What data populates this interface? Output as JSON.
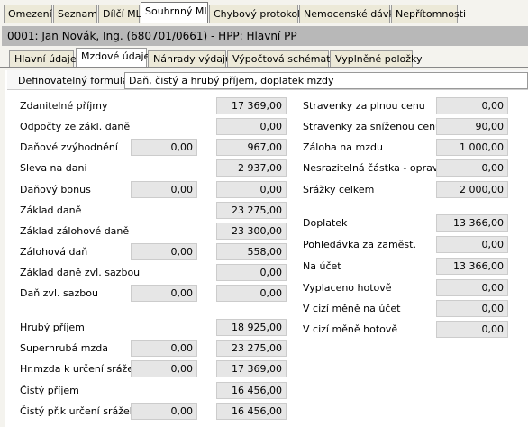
{
  "tabs": [
    "Omezení",
    "Seznam",
    "Dílčí ML",
    "Souhrnný ML",
    "Chybový protokol",
    "Nemocenské dávky",
    "Nepřítomnosti"
  ],
  "header": "0001: Jan Novák, Ing. (680701/0661) - HPP: Hlavní PP",
  "subtabs": [
    "Hlavní údaje",
    "Mzdové údaje",
    "Náhrady výdajů",
    "Výpočtová schémata",
    "Vyplněné položky"
  ],
  "form": {
    "label": "Definovatelný formulář:",
    "value": "Daň, čistý a hrubý příjem, doplatek mzdy"
  },
  "left_rows": [
    {
      "label": "Zdanitelné příjmy",
      "fields": [
        "17 369,00"
      ]
    },
    {
      "label": "Odpočty ze zákl. daně",
      "fields": [
        "0,00"
      ]
    },
    {
      "label": "Daňové zvýhodnění",
      "fields": [
        "0,00",
        "967,00"
      ]
    },
    {
      "label": "Sleva na dani",
      "fields": [
        "2 937,00"
      ]
    },
    {
      "label": "Daňový bonus",
      "fields": [
        "0,00",
        "0,00"
      ]
    },
    {
      "label": "Základ daně",
      "fields": [
        "23 275,00"
      ]
    },
    {
      "label": "Základ zálohové daně",
      "fields": [
        "23 300,00"
      ]
    },
    {
      "label": "Zálohová daň",
      "fields": [
        "0,00",
        "558,00"
      ]
    },
    {
      "label": "Základ daně zvl. sazbou",
      "fields": [
        "0,00"
      ]
    },
    {
      "label": "Daň zvl. sazbou",
      "fields": [
        "0,00",
        "0,00"
      ]
    },
    {
      "label": "Hrubý příjem",
      "fields": [
        "18 925,00"
      ]
    },
    {
      "label": "Superhrubá mzda",
      "fields": [
        "0,00",
        "23 275,00"
      ]
    },
    {
      "label": "Hr.mzda k určení srážek",
      "fields": [
        "0,00",
        "17 369,00"
      ]
    },
    {
      "label": "Čistý příjem",
      "fields": [
        "16 456,00"
      ]
    },
    {
      "label": "Čistý př.k určení srážek",
      "fields": [
        "0,00",
        "16 456,00"
      ]
    }
  ],
  "right_rows": [
    {
      "label": "Stravenky za plnou cenu",
      "value": "0,00"
    },
    {
      "label": "Stravenky za sníženou cenu",
      "value": "90,00"
    },
    {
      "label": "Záloha na mzdu",
      "value": "1 000,00"
    },
    {
      "label": "Nesrazitelná částka - oprava",
      "value": "0,00"
    },
    {
      "label": "Srážky celkem",
      "value": "2 000,00"
    },
    {
      "label": "Doplatek",
      "value": "13 366,00"
    },
    {
      "label": "Pohledávka za zaměst.",
      "value": "0,00"
    },
    {
      "label": "Na účet",
      "value": "13 366,00"
    },
    {
      "label": "Vyplaceno hotově",
      "value": "0,00"
    },
    {
      "label": "V cizí měně na účet",
      "value": "0,00"
    },
    {
      "label": "V cizí měně hotově",
      "value": "0,00"
    }
  ]
}
